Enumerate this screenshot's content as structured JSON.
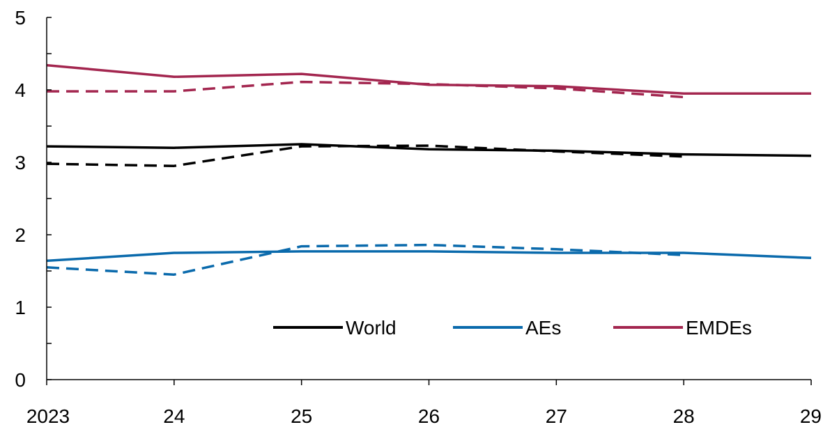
{
  "chart_data": {
    "type": "line",
    "title": "",
    "xlabel": "",
    "ylabel": "",
    "categories": [
      "2023",
      "24",
      "25",
      "26",
      "27",
      "28",
      "29"
    ],
    "ylim": [
      0,
      5
    ],
    "yticks": [
      0,
      1,
      2,
      3,
      4,
      5
    ],
    "grid": false,
    "legend_position": "bottom-right",
    "series": [
      {
        "name": "World",
        "color": "#000000",
        "style": "solid",
        "values": [
          3.22,
          3.2,
          3.25,
          3.18,
          3.16,
          3.11,
          3.09
        ]
      },
      {
        "name": "AEs",
        "color": "#0a6aac",
        "style": "solid",
        "values": [
          1.64,
          1.75,
          1.77,
          1.77,
          1.75,
          1.75,
          1.68
        ]
      },
      {
        "name": "EMDEs",
        "color": "#a3264f",
        "style": "solid",
        "values": [
          4.34,
          4.18,
          4.22,
          4.07,
          4.05,
          3.95,
          3.95
        ]
      },
      {
        "color": "#000000",
        "style": "dashed",
        "values": [
          2.98,
          2.95,
          3.22,
          3.23,
          3.15,
          3.08,
          null
        ]
      },
      {
        "color": "#0a6aac",
        "style": "dashed",
        "values": [
          1.55,
          1.45,
          1.84,
          1.86,
          1.8,
          1.72,
          null
        ]
      },
      {
        "color": "#a3264f",
        "style": "dashed",
        "values": [
          3.98,
          3.98,
          4.11,
          4.08,
          4.02,
          3.9,
          null
        ]
      }
    ]
  }
}
